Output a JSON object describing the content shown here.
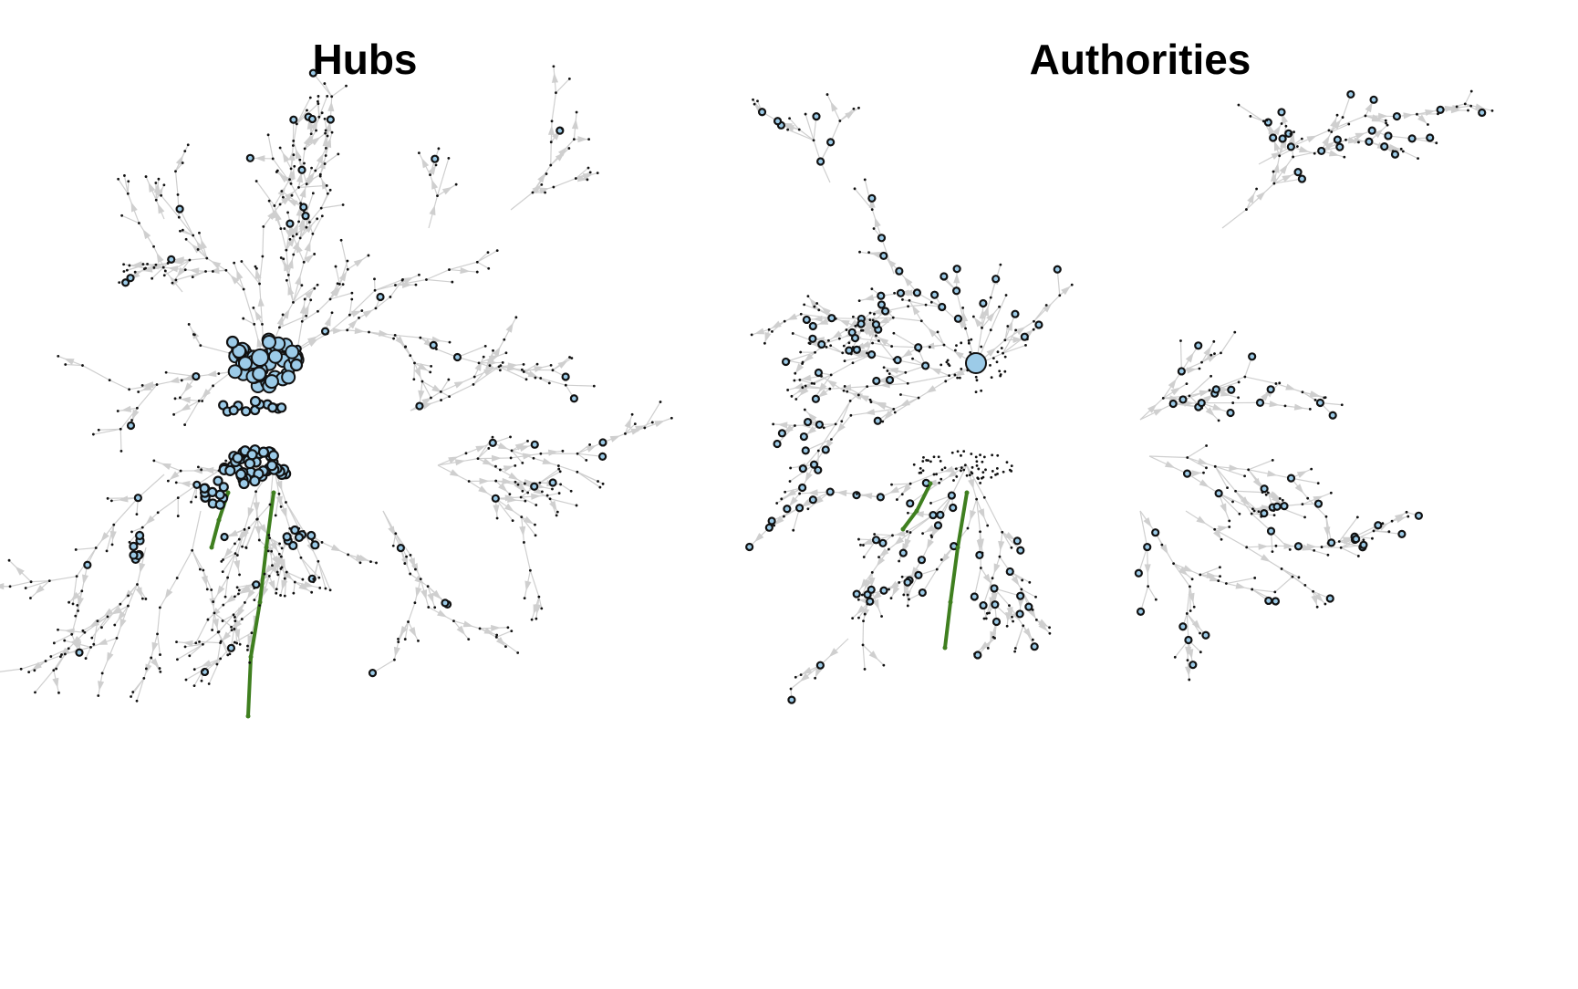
{
  "panels": [
    {
      "id": "hubs",
      "title": "Hubs"
    },
    {
      "id": "authorities",
      "title": "Authorities"
    }
  ],
  "colors": {
    "edge": "#cfcfcf",
    "node_fill": "#9ccbe8",
    "node_stroke": "#111111",
    "path": "#3f7f1f",
    "small_node": "#111111"
  }
}
